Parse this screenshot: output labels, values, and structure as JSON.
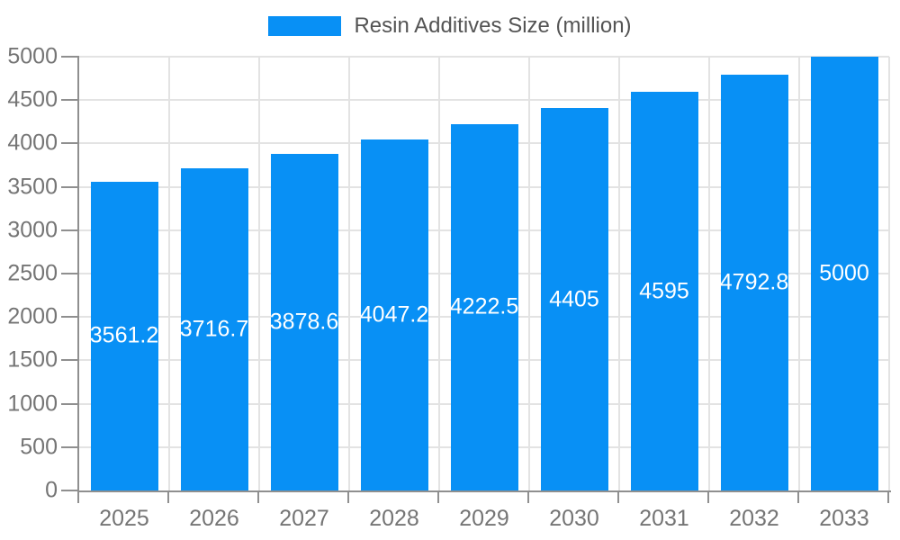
{
  "chart_data": {
    "type": "bar",
    "title": "Resin Additives Size (million)",
    "categories": [
      "2025",
      "2026",
      "2027",
      "2028",
      "2029",
      "2030",
      "2031",
      "2032",
      "2033"
    ],
    "series": [
      {
        "name": "Resin Additives Size (million)",
        "values": [
          3561.2,
          3716.7,
          3878.6,
          4047.2,
          4222.5,
          4405,
          4595,
          4792.8,
          5000
        ]
      }
    ],
    "xlabel": "",
    "ylabel": "",
    "ylim": [
      0,
      5000
    ],
    "ytick_step": 500,
    "yticks": [
      "0",
      "500",
      "1000",
      "1500",
      "2000",
      "2500",
      "3000",
      "3500",
      "4000",
      "4500",
      "5000"
    ],
    "grid": true,
    "legend_position": "top",
    "value_labels_position": "inside-center",
    "colors": {
      "bar": "#0890F5",
      "grid": "#e3e3e3",
      "axis": "#8f8f8f",
      "axis_text": "#757575",
      "legend_text": "#545454",
      "value_label": "#ffffff",
      "background": "#ffffff"
    }
  }
}
